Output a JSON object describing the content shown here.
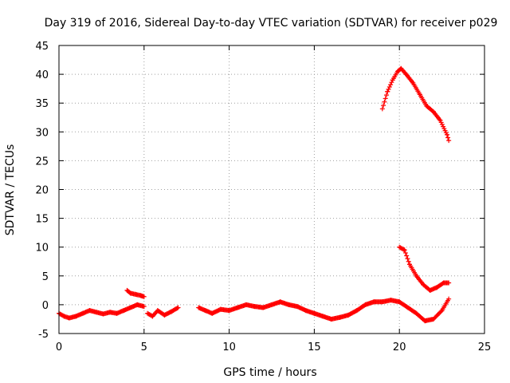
{
  "chart_data": {
    "type": "scatter",
    "title": "Day 319 of 2016, Sidereal Day-to-day VTEC variation (SDTVAR) for receiver p029",
    "xlabel": "GPS time / hours",
    "ylabel": "SDTVAR / TECUs",
    "xlim": [
      0,
      25
    ],
    "ylim": [
      -5,
      45
    ],
    "xticks": [
      0,
      5,
      10,
      15,
      20,
      25
    ],
    "yticks": [
      -5,
      0,
      5,
      10,
      15,
      20,
      25,
      30,
      35,
      40,
      45
    ],
    "grid": true,
    "marker": "+",
    "series_color": "#ff0000",
    "segments": [
      {
        "name": "low-track-a",
        "x": [
          0.0,
          0.3,
          0.6,
          1.0,
          1.4,
          1.8,
          2.2,
          2.6,
          3.0,
          3.4,
          3.8,
          4.2,
          4.6,
          5.0
        ],
        "y": [
          -1.5,
          -2.0,
          -2.3,
          -2.0,
          -1.5,
          -1.0,
          -1.3,
          -1.6,
          -1.3,
          -1.5,
          -1.0,
          -0.5,
          0.0,
          -0.3
        ]
      },
      {
        "name": "bump-4h",
        "x": [
          4.0,
          4.2,
          4.5,
          4.8,
          5.0
        ],
        "y": [
          2.5,
          2.0,
          1.8,
          1.6,
          1.4
        ]
      },
      {
        "name": "low-track-b",
        "x": [
          5.2,
          5.5,
          5.8,
          6.2,
          6.6,
          7.0
        ],
        "y": [
          -1.5,
          -2.0,
          -1.0,
          -1.8,
          -1.2,
          -0.5
        ]
      },
      {
        "name": "low-track-c",
        "x": [
          8.2,
          8.6,
          9.0,
          9.5,
          10.0,
          10.5,
          11.0,
          11.5,
          12.0,
          12.5,
          13.0,
          13.5,
          14.0,
          14.5,
          15.0,
          15.5,
          16.0,
          16.5,
          17.0,
          17.5,
          18.0,
          18.5,
          19.0,
          19.5,
          20.0,
          20.5,
          21.0,
          21.5,
          22.0,
          22.5,
          22.9
        ],
        "y": [
          -0.5,
          -1.0,
          -1.5,
          -0.8,
          -1.0,
          -0.5,
          0.0,
          -0.3,
          -0.5,
          0.0,
          0.5,
          0.0,
          -0.3,
          -1.0,
          -1.5,
          -2.0,
          -2.5,
          -2.2,
          -1.8,
          -1.0,
          0.0,
          0.5,
          0.5,
          0.8,
          0.5,
          -0.5,
          -1.5,
          -2.8,
          -2.5,
          -1.0,
          1.0
        ]
      },
      {
        "name": "mid-track",
        "x": [
          20.0,
          20.3,
          20.6,
          21.0,
          21.4,
          21.8,
          22.2,
          22.6,
          22.9
        ],
        "y": [
          10.0,
          9.5,
          7.0,
          5.0,
          3.5,
          2.5,
          3.0,
          3.8,
          3.8
        ]
      },
      {
        "name": "high-track",
        "x": [
          19.0,
          19.3,
          19.6,
          19.9,
          20.1,
          20.4,
          20.8,
          21.2,
          21.6,
          22.0,
          22.4,
          22.8,
          22.9
        ],
        "y": [
          34.0,
          37.0,
          39.0,
          40.5,
          41.0,
          40.0,
          38.5,
          36.5,
          34.5,
          33.5,
          32.0,
          29.5,
          28.5
        ]
      }
    ]
  }
}
